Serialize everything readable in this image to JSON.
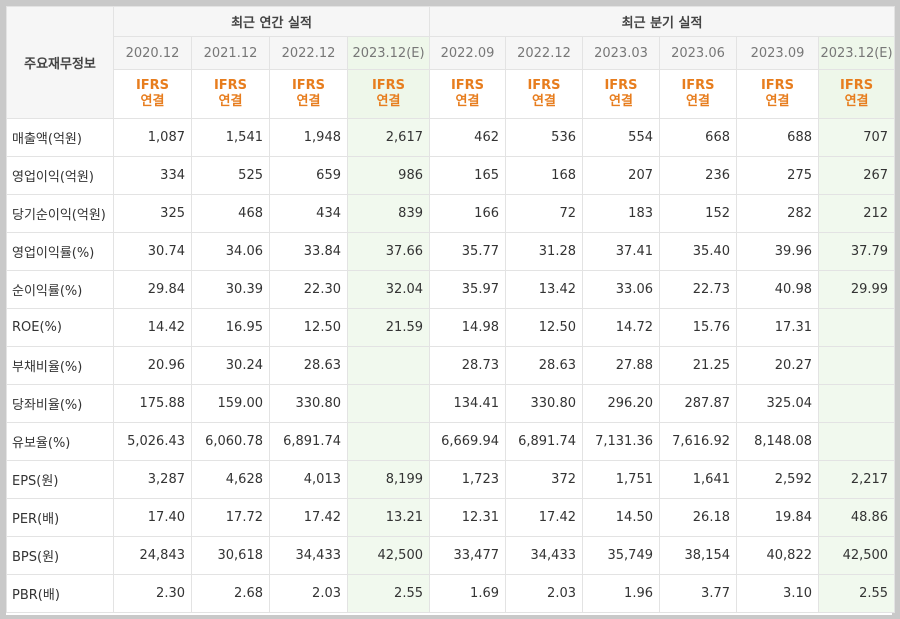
{
  "header": {
    "row_header": "주요재무정보",
    "annual_title": "최근 연간 실적",
    "quarterly_title": "최근 분기 실적",
    "annual_periods": [
      "2020.12",
      "2021.12",
      "2022.12",
      "2023.12(E)"
    ],
    "quarterly_periods": [
      "2022.09",
      "2022.12",
      "2023.03",
      "2023.06",
      "2023.09",
      "2023.12(E)"
    ],
    "ifrs_line1": "IFRS",
    "ifrs_line2": "연결"
  },
  "rows": [
    {
      "label": "매출액(억원)",
      "annual": [
        "1,087",
        "1,541",
        "1,948",
        "2,617"
      ],
      "quarterly": [
        "462",
        "536",
        "554",
        "668",
        "688",
        "707"
      ]
    },
    {
      "label": "영업이익(억원)",
      "annual": [
        "334",
        "525",
        "659",
        "986"
      ],
      "quarterly": [
        "165",
        "168",
        "207",
        "236",
        "275",
        "267"
      ]
    },
    {
      "label": "당기순이익(억원)",
      "annual": [
        "325",
        "468",
        "434",
        "839"
      ],
      "quarterly": [
        "166",
        "72",
        "183",
        "152",
        "282",
        "212"
      ]
    },
    {
      "label": "영업이익률(%)",
      "annual": [
        "30.74",
        "34.06",
        "33.84",
        "37.66"
      ],
      "quarterly": [
        "35.77",
        "31.28",
        "37.41",
        "35.40",
        "39.96",
        "37.79"
      ]
    },
    {
      "label": "순이익률(%)",
      "annual": [
        "29.84",
        "30.39",
        "22.30",
        "32.04"
      ],
      "quarterly": [
        "35.97",
        "13.42",
        "33.06",
        "22.73",
        "40.98",
        "29.99"
      ]
    },
    {
      "label": "ROE(%)",
      "annual": [
        "14.42",
        "16.95",
        "12.50",
        "21.59"
      ],
      "quarterly": [
        "14.98",
        "12.50",
        "14.72",
        "15.76",
        "17.31",
        ""
      ]
    },
    {
      "label": "부채비율(%)",
      "annual": [
        "20.96",
        "30.24",
        "28.63",
        ""
      ],
      "quarterly": [
        "28.73",
        "28.63",
        "27.88",
        "21.25",
        "20.27",
        ""
      ]
    },
    {
      "label": "당좌비율(%)",
      "annual": [
        "175.88",
        "159.00",
        "330.80",
        ""
      ],
      "quarterly": [
        "134.41",
        "330.80",
        "296.20",
        "287.87",
        "325.04",
        ""
      ]
    },
    {
      "label": "유보율(%)",
      "annual": [
        "5,026.43",
        "6,060.78",
        "6,891.74",
        ""
      ],
      "quarterly": [
        "6,669.94",
        "6,891.74",
        "7,131.36",
        "7,616.92",
        "8,148.08",
        ""
      ]
    },
    {
      "label": "EPS(원)",
      "annual": [
        "3,287",
        "4,628",
        "4,013",
        "8,199"
      ],
      "quarterly": [
        "1,723",
        "372",
        "1,751",
        "1,641",
        "2,592",
        "2,217"
      ]
    },
    {
      "label": "PER(배)",
      "annual": [
        "17.40",
        "17.72",
        "17.42",
        "13.21"
      ],
      "quarterly": [
        "12.31",
        "17.42",
        "14.50",
        "26.18",
        "19.84",
        "48.86"
      ]
    },
    {
      "label": "BPS(원)",
      "annual": [
        "24,843",
        "30,618",
        "34,433",
        "42,500"
      ],
      "quarterly": [
        "33,477",
        "34,433",
        "35,749",
        "38,154",
        "40,822",
        "42,500"
      ]
    },
    {
      "label": "PBR(배)",
      "annual": [
        "2.30",
        "2.68",
        "2.03",
        "2.55"
      ],
      "quarterly": [
        "1.69",
        "2.03",
        "1.96",
        "3.77",
        "3.10",
        "2.55"
      ]
    }
  ],
  "colors": {
    "ifrs_text": "#e77d1e",
    "estimate_bg": "#eef7ea",
    "header_bg": "#f6f6f6"
  }
}
